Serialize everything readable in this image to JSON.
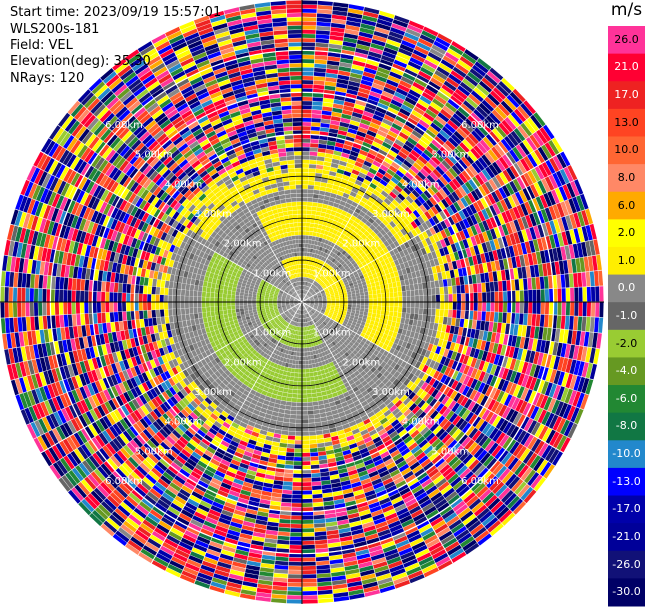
{
  "info": {
    "start_time": "Start time: 2023/09/19 15:57:01",
    "station": "WLS200s-181",
    "field": "Field: VEL",
    "elevation": "Elevation(deg): 35.30",
    "nrays": "NRays: 120"
  },
  "chart_data": {
    "type": "heatmap",
    "subtype": "polar-ppi",
    "field": "VEL",
    "units": "m/s",
    "nrays": 120,
    "elevation_deg": 35.3,
    "range_ring_labels": [
      "1.00km",
      "2.00km",
      "3.00km",
      "4.00km",
      "5.00km",
      "6.00km"
    ],
    "range_ring_km": [
      1,
      2,
      3,
      4,
      5,
      6
    ],
    "max_range_km": 7.2,
    "colorbar": {
      "title": "m/s",
      "tick_labels": [
        "26.0",
        "21.0",
        "17.0",
        "13.0",
        "10.0",
        "8.0",
        "6.0",
        "2.0",
        "1.0",
        "0.0",
        "-1.0",
        "-2.0",
        "-4.0",
        "-6.0",
        "-8.0",
        "-10.0",
        "-13.0",
        "-17.0",
        "-21.0",
        "-26.0",
        "-30.0"
      ],
      "colors_top_to_bottom": [
        "#ff3399",
        "#ff0033",
        "#ee2222",
        "#ff4422",
        "#ff6633",
        "#ff8866",
        "#ffaa00",
        "#ffff00",
        "#ffee00",
        "#888888",
        "#666666",
        "#99cc33",
        "#669922",
        "#228833",
        "#117744",
        "#2288cc",
        "#0000ff",
        "#0000aa",
        "#000099",
        "#111177",
        "#000066"
      ],
      "vmin": -30,
      "vmax": 30
    },
    "inner_pattern": "near-zero velocities (grey) within ~3 km; bands of +1..+2 m/s (yellow) on the north and east, -1..-2 m/s (green) on the west and south; noisy values beyond ~3.5 km"
  }
}
